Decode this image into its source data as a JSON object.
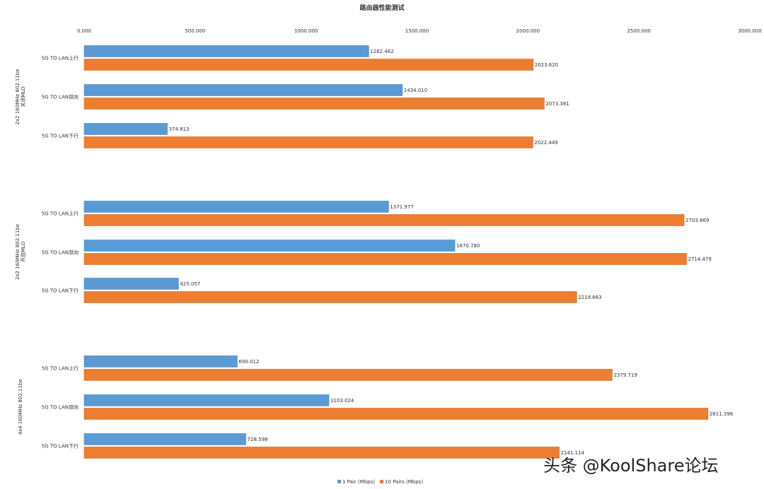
{
  "chart_data": {
    "type": "bar",
    "orientation": "horizontal",
    "title": "路由器性能测试",
    "xlim": [
      0,
      3000
    ],
    "xticks": [
      "0.000",
      "500.000",
      "1000.000",
      "1500.000",
      "2000.000",
      "2500.000",
      "3000.000"
    ],
    "grid": false,
    "legend_position": "bottom",
    "groups": [
      {
        "label_lines": [
          "2x2 160MHz 802.11be",
          "关闭MLO"
        ],
        "categories": [
          "5G TO LAN上行",
          "5G TO LAN双向",
          "5G TO LAN下行"
        ],
        "series": [
          {
            "name": "1 Pair (Mbps)",
            "values": [
              1282.462,
              1434.01,
              374.813
            ],
            "labels": [
              "1282.462",
              "1434.010",
              "374.813"
            ]
          },
          {
            "name": "10 Pairs (Mbps)",
            "values": [
              2023.62,
              2073.381,
              2022.449
            ],
            "labels": [
              "2023.620",
              "2073.381",
              "2022.449"
            ]
          }
        ]
      },
      {
        "label_lines": [
          "2x2 160MHz 802.11be",
          "开启MLO"
        ],
        "categories": [
          "5G TO LAN上行",
          "5G TO LAN双向",
          "5G TO LAN下行"
        ],
        "series": [
          {
            "name": "1 Pair (Mbps)",
            "values": [
              1371.977,
              1670.78,
              425.057
            ],
            "labels": [
              "1371.977",
              "1670.780",
              "425.057"
            ]
          },
          {
            "name": "10 Pairs (Mbps)",
            "values": [
              2703.669,
              2714.479,
              2219.663
            ],
            "labels": [
              "2703.669",
              "2714.479",
              "2219.663"
            ]
          }
        ]
      },
      {
        "label_lines": [
          "4x4 160MHz 802.11be"
        ],
        "categories": [
          "5G TO LAN上行",
          "5G TO LAN双向",
          "5G TO LAN下行"
        ],
        "series": [
          {
            "name": "1 Pair (Mbps)",
            "values": [
              690.012,
              1103.024,
              728.598
            ],
            "labels": [
              "690.012",
              "1103.024",
              "728.598"
            ]
          },
          {
            "name": "10 Pairs (Mbps)",
            "values": [
              2379.719,
              2811.396,
              2141.114
            ],
            "labels": [
              "2379.719",
              "2811.396",
              "2141.114"
            ]
          }
        ]
      }
    ],
    "legend": [
      "1 Pair (Mbps)",
      "10 Pairs (Mbps)"
    ],
    "colors": {
      "series1": "#5b9bd5",
      "series1_edge": "#4a86c0",
      "series2": "#ed7d31",
      "series2_edge": "#d4691f"
    }
  },
  "watermark": {
    "text": "头条 @KoolShare论坛"
  }
}
